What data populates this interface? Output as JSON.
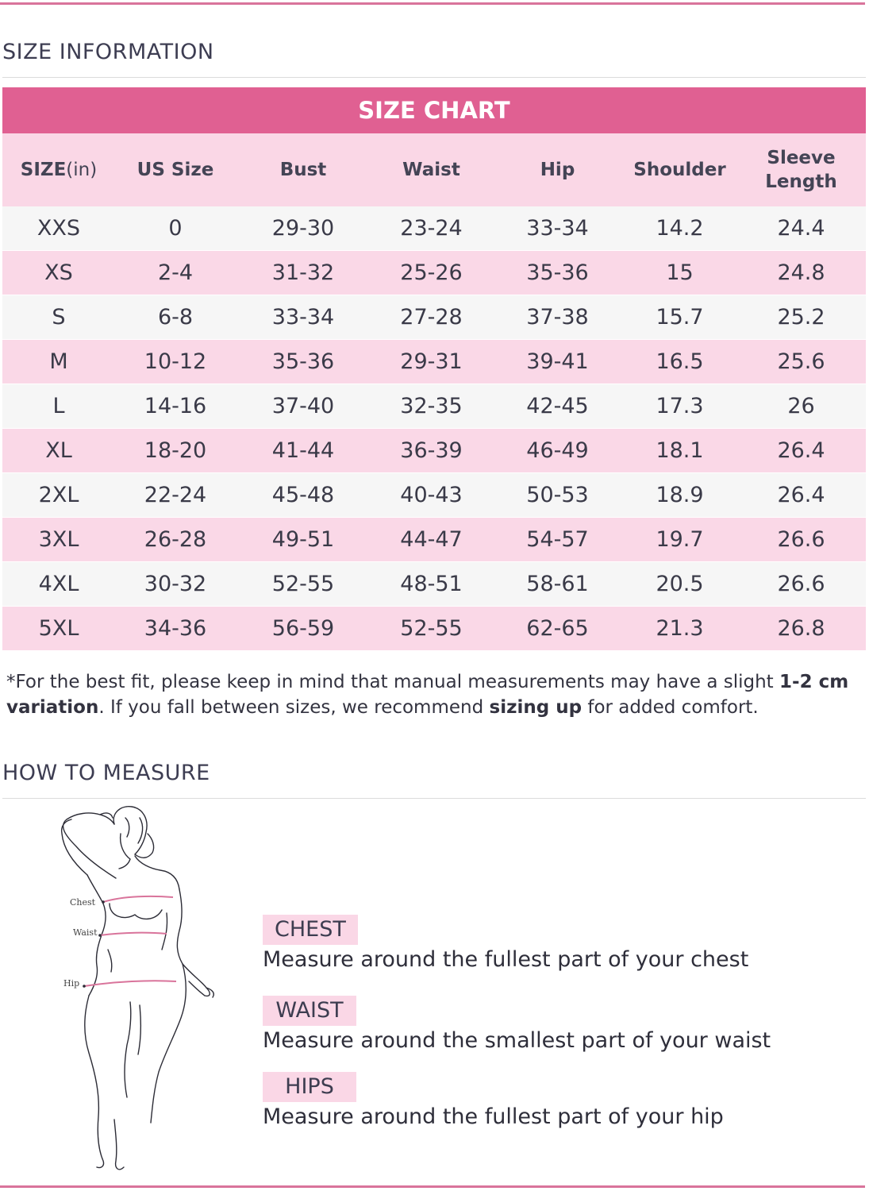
{
  "size_information_title": "SIZE INFORMATION",
  "size_chart": {
    "title": "SIZE CHART",
    "headers": {
      "size": "SIZE",
      "size_unit": "(in)",
      "us_size": "US Size",
      "bust": "Bust",
      "waist": "Waist",
      "hip": "Hip",
      "shoulder": "Shoulder",
      "sleeve_line1": "Sleeve",
      "sleeve_line2": "Length"
    },
    "rows": [
      [
        "XXS",
        "0",
        "29-30",
        "23-24",
        "33-34",
        "14.2",
        "24.4"
      ],
      [
        "XS",
        "2-4",
        "31-32",
        "25-26",
        "35-36",
        "15",
        "24.8"
      ],
      [
        "S",
        "6-8",
        "33-34",
        "27-28",
        "37-38",
        "15.7",
        "25.2"
      ],
      [
        "M",
        "10-12",
        "35-36",
        "29-31",
        "39-41",
        "16.5",
        "25.6"
      ],
      [
        "L",
        "14-16",
        "37-40",
        "32-35",
        "42-45",
        "17.3",
        "26"
      ],
      [
        "XL",
        "18-20",
        "41-44",
        "36-39",
        "46-49",
        "18.1",
        "26.4"
      ],
      [
        "2XL",
        "22-24",
        "45-48",
        "40-43",
        "50-53",
        "18.9",
        "26.4"
      ],
      [
        "3XL",
        "26-28",
        "49-51",
        "44-47",
        "54-57",
        "19.7",
        "26.6"
      ],
      [
        "4XL",
        "30-32",
        "52-55",
        "48-51",
        "58-61",
        "20.5",
        "26.6"
      ],
      [
        "5XL",
        "34-36",
        "56-59",
        "52-55",
        "62-65",
        "21.3",
        "26.8"
      ]
    ]
  },
  "footnote": {
    "part1": "*For the best fit, please keep in mind that manual measurements may have a slight ",
    "bold1": "1-2 cm variation",
    "part2": ". If you fall between sizes, we recommend ",
    "bold2": "sizing up",
    "part3": " for added comfort."
  },
  "how_to_measure_title": "HOW TO MEASURE",
  "figure_labels": {
    "chest": "Chest",
    "waist": "Waist",
    "hip": "Hip"
  },
  "measurements": [
    {
      "tag": "CHEST",
      "description": "Measure around the fullest part of your chest"
    },
    {
      "tag": "WAIST",
      "description": "Measure around the smallest part of your waist"
    },
    {
      "tag": "HIPS",
      "description": "Measure around the fullest part of your hip"
    }
  ],
  "colors": {
    "accent": "#e06092",
    "row_pink": "#fad8e7",
    "row_grey": "#f6f6f6",
    "rule": "#d9749b"
  }
}
